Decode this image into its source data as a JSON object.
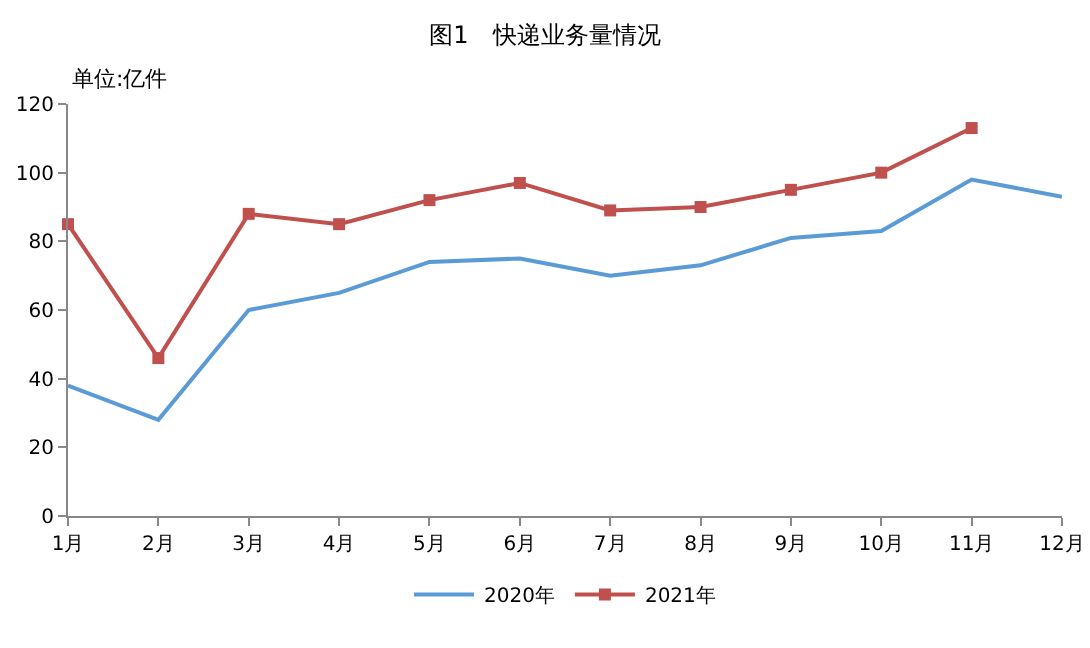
{
  "chart_data": {
    "type": "line",
    "title": "图1　快递业务量情况",
    "ylabel": "单位:亿件",
    "categories": [
      "1月",
      "2月",
      "3月",
      "4月",
      "5月",
      "6月",
      "7月",
      "8月",
      "9月",
      "10月",
      "11月",
      "12月"
    ],
    "series": [
      {
        "name": "2020年",
        "color": "#5b9bd5",
        "marker": "none",
        "values": [
          38,
          28,
          60,
          65,
          74,
          75,
          70,
          73,
          81,
          83,
          98,
          93
        ]
      },
      {
        "name": "2021年",
        "color": "#c0504d",
        "marker": "square",
        "values": [
          85,
          46,
          88,
          85,
          92,
          97,
          89,
          90,
          95,
          100,
          113,
          null
        ]
      }
    ],
    "ylim": [
      0,
      120
    ],
    "yticks": [
      0,
      20,
      40,
      60,
      80,
      100,
      120
    ],
    "grid": false,
    "legend": "bottom",
    "line_style": "solid"
  }
}
